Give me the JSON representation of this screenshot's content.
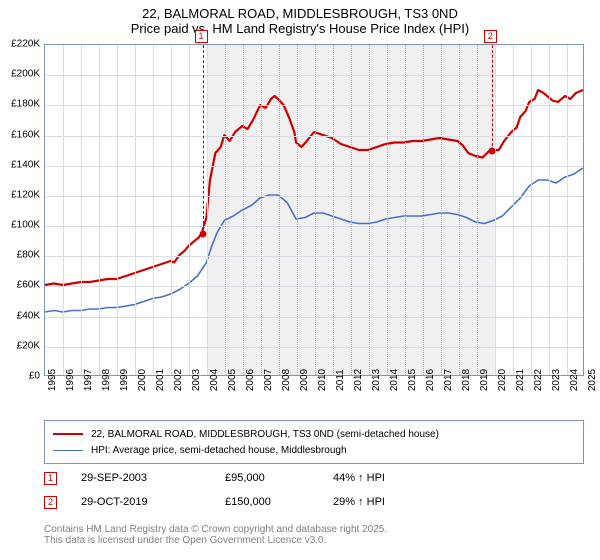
{
  "title_main": "22, BALMORAL ROAD, MIDDLESBROUGH, TS3 0ND",
  "title_sub": "Price paid vs. HM Land Registry's House Price Index (HPI)",
  "chart": {
    "type": "line",
    "background_color": "#ffffff",
    "shade_color": "#f0f0f0",
    "grid_color": "#dadde6",
    "grid_dotted_color": "#b0b4c2",
    "border_color": "#7f93c7",
    "x_min": 1995,
    "x_max": 2025,
    "y_min": 0,
    "y_max": 220000,
    "y_tick_step": 20000,
    "y_tick_prefix": "£",
    "y_tick_suffix": "K",
    "y_tick_divide": 1000,
    "x_ticks": [
      1995,
      1996,
      1997,
      1998,
      1999,
      2000,
      2001,
      2002,
      2003,
      2004,
      2005,
      2006,
      2007,
      2008,
      2009,
      2010,
      2011,
      2012,
      2013,
      2014,
      2015,
      2016,
      2017,
      2018,
      2019,
      2020,
      2021,
      2022,
      2023,
      2024,
      2025
    ],
    "shaded_ranges": [
      [
        2004,
        2020
      ]
    ],
    "series": [
      {
        "name": "price_paid",
        "label": "22, BALMORAL ROAD, MIDDLESBROUGH, TS3 0ND (semi-detached house)",
        "color": "#cc0000",
        "line_width": 2.2,
        "data": [
          [
            1995.0,
            60000
          ],
          [
            1995.5,
            61000
          ],
          [
            1996.0,
            60000
          ],
          [
            1996.5,
            61000
          ],
          [
            1997.0,
            62000
          ],
          [
            1997.5,
            62000
          ],
          [
            1998.0,
            63000
          ],
          [
            1998.5,
            64000
          ],
          [
            1999.0,
            64000
          ],
          [
            1999.5,
            66000
          ],
          [
            2000.0,
            68000
          ],
          [
            2000.5,
            70000
          ],
          [
            2001.0,
            72000
          ],
          [
            2001.5,
            74000
          ],
          [
            2002.0,
            76000
          ],
          [
            2002.2,
            75000
          ],
          [
            2002.5,
            80000
          ],
          [
            2002.8,
            83000
          ],
          [
            2003.0,
            86000
          ],
          [
            2003.3,
            89000
          ],
          [
            2003.6,
            92000
          ],
          [
            2003.75,
            95000
          ],
          [
            2004.0,
            105000
          ],
          [
            2004.2,
            130000
          ],
          [
            2004.5,
            148000
          ],
          [
            2004.8,
            152000
          ],
          [
            2005.0,
            160000
          ],
          [
            2005.3,
            156000
          ],
          [
            2005.6,
            162000
          ],
          [
            2006.0,
            166000
          ],
          [
            2006.3,
            164000
          ],
          [
            2006.6,
            170000
          ],
          [
            2007.0,
            180000
          ],
          [
            2007.3,
            178000
          ],
          [
            2007.6,
            184000
          ],
          [
            2007.8,
            186000
          ],
          [
            2008.0,
            184000
          ],
          [
            2008.3,
            180000
          ],
          [
            2008.6,
            172000
          ],
          [
            2008.9,
            162000
          ],
          [
            2009.0,
            155000
          ],
          [
            2009.3,
            152000
          ],
          [
            2009.6,
            156000
          ],
          [
            2010.0,
            162000
          ],
          [
            2010.5,
            160000
          ],
          [
            2011.0,
            158000
          ],
          [
            2011.5,
            154000
          ],
          [
            2012.0,
            152000
          ],
          [
            2012.5,
            150000
          ],
          [
            2013.0,
            150000
          ],
          [
            2013.5,
            152000
          ],
          [
            2014.0,
            154000
          ],
          [
            2014.5,
            155000
          ],
          [
            2015.0,
            155000
          ],
          [
            2015.5,
            156000
          ],
          [
            2016.0,
            156000
          ],
          [
            2016.5,
            157000
          ],
          [
            2017.0,
            158000
          ],
          [
            2017.5,
            157000
          ],
          [
            2018.0,
            156000
          ],
          [
            2018.3,
            153000
          ],
          [
            2018.6,
            148000
          ],
          [
            2019.0,
            146000
          ],
          [
            2019.4,
            145000
          ],
          [
            2019.82,
            150000
          ],
          [
            2020.0,
            150000
          ],
          [
            2020.3,
            150000
          ],
          [
            2020.6,
            156000
          ],
          [
            2021.0,
            162000
          ],
          [
            2021.3,
            165000
          ],
          [
            2021.5,
            172000
          ],
          [
            2021.8,
            176000
          ],
          [
            2022.0,
            182000
          ],
          [
            2022.3,
            184000
          ],
          [
            2022.5,
            190000
          ],
          [
            2022.8,
            188000
          ],
          [
            2023.0,
            186000
          ],
          [
            2023.3,
            183000
          ],
          [
            2023.6,
            182000
          ],
          [
            2024.0,
            186000
          ],
          [
            2024.3,
            184000
          ],
          [
            2024.6,
            188000
          ],
          [
            2025.0,
            190000
          ]
        ]
      },
      {
        "name": "hpi",
        "label": "HPI: Average price, semi-detached house, Middlesbrough",
        "color": "#4a6fc9",
        "line_width": 1.6,
        "data": [
          [
            1995.0,
            42000
          ],
          [
            1995.5,
            43000
          ],
          [
            1996.0,
            42000
          ],
          [
            1996.5,
            43000
          ],
          [
            1997.0,
            43000
          ],
          [
            1997.5,
            44000
          ],
          [
            1998.0,
            44000
          ],
          [
            1998.5,
            45000
          ],
          [
            1999.0,
            45000
          ],
          [
            1999.5,
            46000
          ],
          [
            2000.0,
            47000
          ],
          [
            2000.5,
            49000
          ],
          [
            2001.0,
            51000
          ],
          [
            2001.5,
            52000
          ],
          [
            2002.0,
            54000
          ],
          [
            2002.5,
            57000
          ],
          [
            2003.0,
            61000
          ],
          [
            2003.5,
            66000
          ],
          [
            2004.0,
            75000
          ],
          [
            2004.3,
            86000
          ],
          [
            2004.6,
            95000
          ],
          [
            2005.0,
            103000
          ],
          [
            2005.5,
            106000
          ],
          [
            2006.0,
            110000
          ],
          [
            2006.5,
            113000
          ],
          [
            2007.0,
            118000
          ],
          [
            2007.5,
            120000
          ],
          [
            2008.0,
            120000
          ],
          [
            2008.5,
            115000
          ],
          [
            2009.0,
            104000
          ],
          [
            2009.5,
            105000
          ],
          [
            2010.0,
            108000
          ],
          [
            2010.5,
            108000
          ],
          [
            2011.0,
            106000
          ],
          [
            2011.5,
            104000
          ],
          [
            2012.0,
            102000
          ],
          [
            2012.5,
            101000
          ],
          [
            2013.0,
            101000
          ],
          [
            2013.5,
            102000
          ],
          [
            2014.0,
            104000
          ],
          [
            2014.5,
            105000
          ],
          [
            2015.0,
            106000
          ],
          [
            2015.5,
            106000
          ],
          [
            2016.0,
            106000
          ],
          [
            2016.5,
            107000
          ],
          [
            2017.0,
            108000
          ],
          [
            2017.5,
            108000
          ],
          [
            2018.0,
            107000
          ],
          [
            2018.5,
            105000
          ],
          [
            2019.0,
            102000
          ],
          [
            2019.5,
            101000
          ],
          [
            2020.0,
            103000
          ],
          [
            2020.5,
            106000
          ],
          [
            2021.0,
            112000
          ],
          [
            2021.5,
            118000
          ],
          [
            2022.0,
            126000
          ],
          [
            2022.5,
            130000
          ],
          [
            2023.0,
            130000
          ],
          [
            2023.5,
            128000
          ],
          [
            2024.0,
            132000
          ],
          [
            2024.5,
            134000
          ],
          [
            2025.0,
            138000
          ]
        ]
      }
    ],
    "markers": [
      {
        "n": "1",
        "x": 2003.75,
        "y": 95000,
        "color": "#cc0000"
      },
      {
        "n": "2",
        "x": 2019.82,
        "y": 150000,
        "color": "#cc0000"
      }
    ]
  },
  "legend": {
    "items": [
      {
        "label": "22, BALMORAL ROAD, MIDDLESBROUGH, TS3 0ND (semi-detached house)",
        "color": "#cc0000",
        "line_width": 2.2
      },
      {
        "label": "HPI: Average price, semi-detached house, Middlesbrough",
        "color": "#4a6fc9",
        "line_width": 1.6
      }
    ]
  },
  "events": [
    {
      "n": "1",
      "color": "#cc0000",
      "date": "29-SEP-2003",
      "price": "£95,000",
      "delta": "44% ↑ HPI"
    },
    {
      "n": "2",
      "color": "#cc0000",
      "date": "29-OCT-2019",
      "price": "£150,000",
      "delta": "29% ↑ HPI"
    }
  ],
  "footer_line1": "Contains HM Land Registry data © Crown copyright and database right 2025.",
  "footer_line2": "This data is licensed under the Open Government Licence v3.0."
}
